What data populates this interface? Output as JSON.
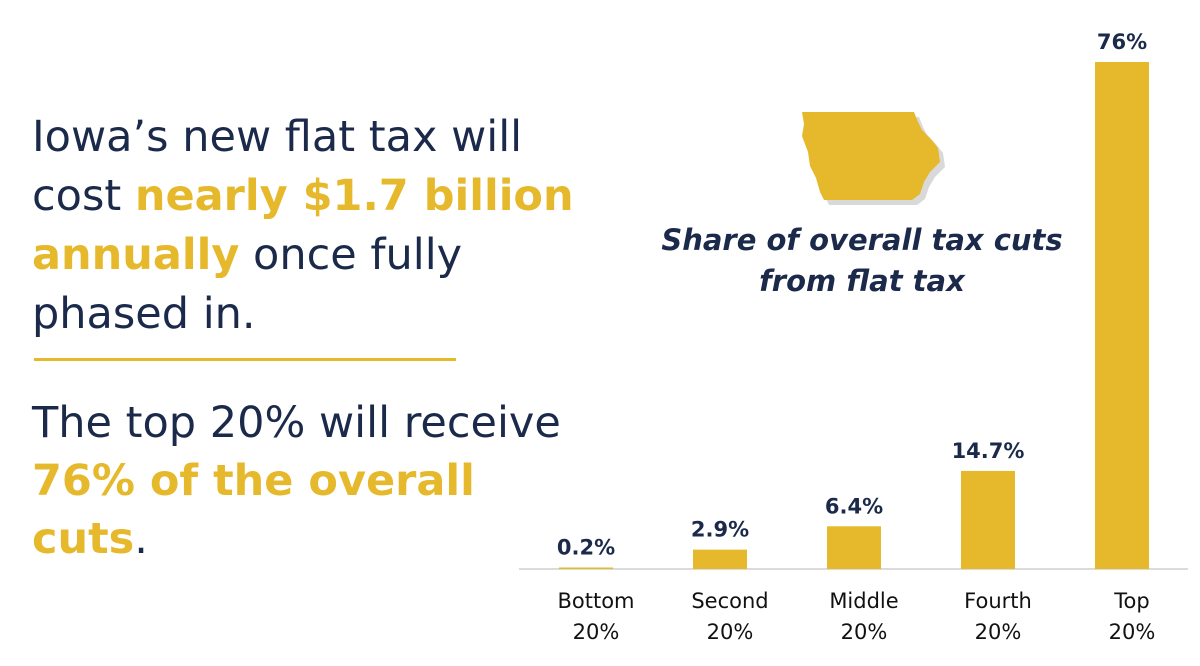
{
  "headline": {
    "part1": "Iowa’s new flat tax will cost ",
    "highlight": "nearly $1.7 billion annually",
    "part2": " once fully phased in."
  },
  "subline": {
    "part1": "The top 20% will receive ",
    "highlight": "76% of the overall cuts",
    "part2": "."
  },
  "colors": {
    "navy": "#1b2a4a",
    "gold": "#e6b82b",
    "axis": "#cfcfcf"
  },
  "icon": "iowa-state-map-icon",
  "chart_data": {
    "type": "bar",
    "title": "Share of overall tax cuts from flat tax",
    "categories": [
      [
        "Bottom",
        "20%"
      ],
      [
        "Second",
        "20%"
      ],
      [
        "Middle",
        "20%"
      ],
      [
        "Fourth",
        "20%"
      ],
      [
        "Top",
        "20%"
      ]
    ],
    "values": [
      0.2,
      2.9,
      6.4,
      14.7,
      76
    ],
    "value_labels": [
      "0.2%",
      "2.9%",
      "6.4%",
      "14.7%",
      "76%"
    ],
    "ylim": [
      0,
      76
    ],
    "grid": false,
    "legend": "none"
  }
}
